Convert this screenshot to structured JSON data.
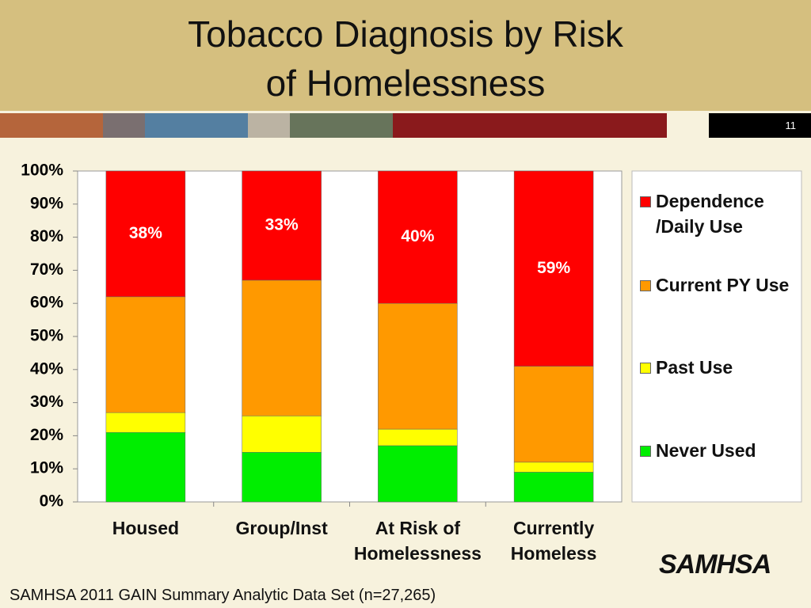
{
  "header": {
    "title": "Tobacco Diagnosis by Risk of Homelessness",
    "page_number": "11"
  },
  "chart_data": {
    "type": "stacked_bar",
    "categories": [
      "Housed",
      "Group/Inst",
      "At Risk of Homelessness",
      "Currently Homeless"
    ],
    "series": [
      {
        "name": "Dependence /Daily Use",
        "color": "#ff0000",
        "values": [
          38,
          33,
          40,
          59
        ],
        "value_labels": [
          "38%",
          "33%",
          "40%",
          "59%"
        ]
      },
      {
        "name": "Current PY Use",
        "color": "#ff9900",
        "values": [
          35,
          41,
          38,
          29
        ]
      },
      {
        "name": "Past Use",
        "color": "#ffff00",
        "values": [
          6,
          11,
          5,
          3
        ]
      },
      {
        "name": "Never Used",
        "color": "#00ee00",
        "values": [
          21,
          15,
          17,
          9
        ]
      }
    ],
    "ylim": [
      0,
      100
    ],
    "yticks": [
      {
        "value": 0,
        "label": "0%"
      },
      {
        "value": 10,
        "label": "10%"
      },
      {
        "value": 20,
        "label": "20%"
      },
      {
        "value": 30,
        "label": "30%"
      },
      {
        "value": 40,
        "label": "40%"
      },
      {
        "value": 50,
        "label": "50%"
      },
      {
        "value": 60,
        "label": "60%"
      },
      {
        "value": 70,
        "label": "70%"
      },
      {
        "value": 80,
        "label": "80%"
      },
      {
        "value": 90,
        "label": "90%"
      },
      {
        "value": 100,
        "label": "100%"
      }
    ],
    "legend": "right"
  },
  "footer": {
    "source": "SAMHSA 2011 GAIN Summary Analytic Data Set (n=27,265)",
    "logo": "SAMHSA"
  }
}
